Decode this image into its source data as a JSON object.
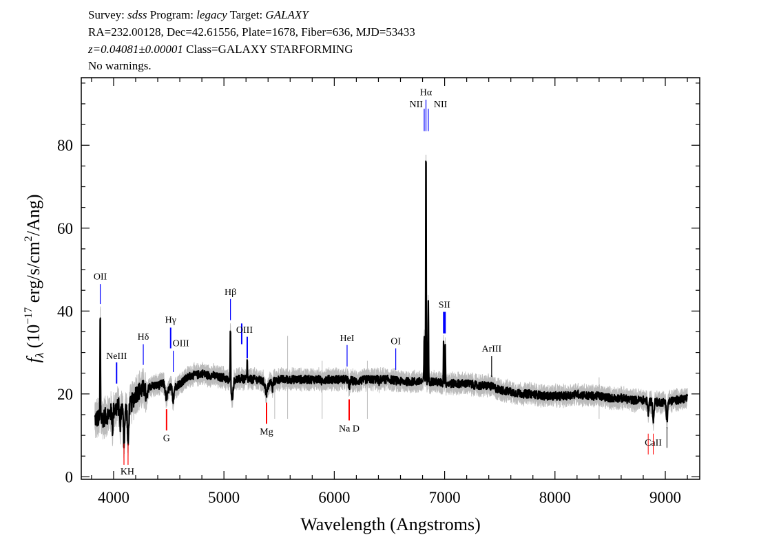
{
  "header": {
    "line1": {
      "survey_label": "Survey: ",
      "survey": "sdss",
      "program_label": " Program: ",
      "program": "legacy",
      "target_label": " Target: ",
      "target": "GALAXY"
    },
    "line2": "RA=232.00128, Dec=42.61556, Plate=1678, Fiber=636, MJD=53433",
    "line3": {
      "redshift": "z=0.04081±0.00001",
      "class": " Class=GALAXY STARFORMING"
    },
    "line4": "No warnings."
  },
  "chart_data": {
    "type": "line",
    "xlabel": "Wavelength (Angstroms)",
    "ylabel": {
      "f": "f",
      "sub": "λ",
      "pre": " (10",
      "exp": "−17",
      "mid": " erg/s/cm",
      "exp2": "2",
      "post": "/Ang)"
    },
    "xlim": [
      3707,
      9312
    ],
    "ylim": [
      -0.6,
      96.3
    ],
    "xticks": [
      4000,
      5000,
      6000,
      7000,
      8000,
      9000
    ],
    "yticks": [
      0,
      20,
      40,
      60,
      80
    ],
    "grid": false,
    "colors": {
      "spectrum": "#000000",
      "error": "#bbbbbb",
      "emission": "#0000ff",
      "absorption": "#ff0000",
      "sky": "#000000"
    },
    "continuum": {
      "wavelength": [
        3830,
        3900,
        3950,
        4000,
        4050,
        4100,
        4150,
        4200,
        4250,
        4300,
        4350,
        4400,
        4450,
        4500,
        4550,
        4600,
        4650,
        4700,
        4750,
        4800,
        4850,
        4900,
        4950,
        5000,
        5050,
        5100,
        5150,
        5200,
        5250,
        5300,
        5350,
        5400,
        5450,
        5500,
        5600,
        5700,
        5800,
        5900,
        6000,
        6100,
        6200,
        6300,
        6400,
        6500,
        6600,
        6700,
        6800,
        6900,
        7000,
        7100,
        7200,
        7300,
        7400,
        7500,
        7600,
        7700,
        7800,
        7900,
        8000,
        8100,
        8200,
        8300,
        8400,
        8500,
        8600,
        8700,
        8800,
        8900,
        9000,
        9100,
        9200
      ],
      "flux": [
        14,
        14,
        15,
        16,
        17,
        16,
        17,
        20,
        21,
        21.5,
        22,
        22,
        22.5,
        21.5,
        21.5,
        22.5,
        23.5,
        24.5,
        24.5,
        25,
        24.5,
        24.5,
        24,
        24,
        23,
        23.5,
        23.5,
        23.5,
        23.5,
        23.5,
        23,
        22.5,
        23,
        23.5,
        23.5,
        23.5,
        23.5,
        23.5,
        23.5,
        23.5,
        23,
        23.5,
        23.5,
        23.5,
        23,
        23,
        23,
        23,
        22.5,
        22.5,
        22.5,
        22,
        22,
        21,
        20.5,
        20,
        20,
        19.5,
        19.5,
        19.5,
        20,
        19.5,
        19.5,
        19,
        19,
        18.5,
        18.5,
        18,
        18,
        18.5,
        19
      ]
    },
    "emission_peaks": [
      {
        "wavelength": 3879,
        "flux": 40
      },
      {
        "wavelength": 5059,
        "flux": 36
      },
      {
        "wavelength": 5161,
        "flux": 25
      },
      {
        "wavelength": 5211,
        "flux": 28
      },
      {
        "wavelength": 6815,
        "flux": 34
      },
      {
        "wavelength": 6831,
        "flux": 82
      },
      {
        "wavelength": 6852,
        "flux": 43
      },
      {
        "wavelength": 6991,
        "flux": 33
      },
      {
        "wavelength": 7006,
        "flux": 31
      }
    ],
    "line_labels": [
      {
        "name": "OII",
        "wavelength": 3879,
        "kind": "emission"
      },
      {
        "name": "NeIII",
        "wavelength": 4027,
        "kind": "emission"
      },
      {
        "name": "Hδ",
        "wavelength": 4269,
        "kind": "emission"
      },
      {
        "name": "Hγ",
        "wavelength": 4517,
        "kind": "emission"
      },
      {
        "name": "OIII",
        "wavelength": 4541,
        "kind": "emission"
      },
      {
        "name": "Hβ",
        "wavelength": 5059,
        "kind": "emission"
      },
      {
        "name": "OIII",
        "wavelength": 5186,
        "kind": "emission"
      },
      {
        "name": "HeI",
        "wavelength": 6116,
        "kind": "emission"
      },
      {
        "name": "OI",
        "wavelength": 6557,
        "kind": "emission"
      },
      {
        "name": "NII",
        "wavelength": 6815,
        "kind": "emission"
      },
      {
        "name": "Hα",
        "wavelength": 6831,
        "kind": "emission"
      },
      {
        "name": "NII",
        "wavelength": 6852,
        "kind": "emission"
      },
      {
        "name": "SII",
        "wavelength": 6998,
        "kind": "emission"
      },
      {
        "name": "ArIII",
        "wavelength": 7426,
        "kind": "emission"
      },
      {
        "name": "K",
        "wavelength": 4094,
        "kind": "absorption"
      },
      {
        "name": "H",
        "wavelength": 4131,
        "kind": "absorption"
      },
      {
        "name": "G",
        "wavelength": 4480,
        "kind": "absorption"
      },
      {
        "name": "Mg",
        "wavelength": 5386,
        "kind": "absorption"
      },
      {
        "name": "Na  D",
        "wavelength": 6135,
        "kind": "absorption"
      },
      {
        "name": "CaII",
        "wavelength": 8891,
        "kind": "absorption"
      }
    ]
  }
}
